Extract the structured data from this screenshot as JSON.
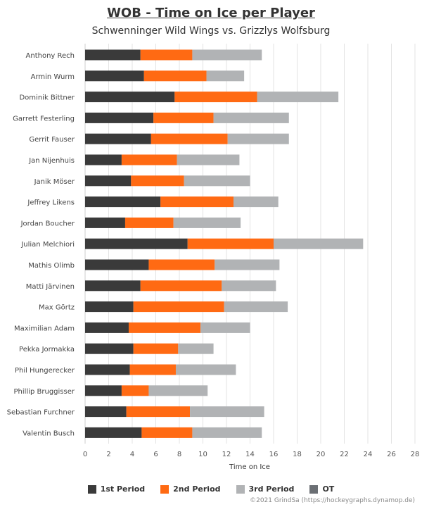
{
  "title": "WOB - Time on Ice per Player",
  "subtitle": "Schwenninger Wild Wings vs. Grizzlys Wolfsburg",
  "credit": "©2021 GrindSa (https://hockeygraphs.dynamop.de)",
  "colors": {
    "p1": "#3a3a3a",
    "p2": "#ff6a13",
    "p3": "#b1b3b5",
    "ot": "#6b6f74",
    "grid": "#e3e3e3",
    "axis": "#cccccc"
  },
  "chart_data": {
    "type": "bar",
    "orientation": "horizontal",
    "stacked": true,
    "xlabel": "Time on Ice",
    "xlim": [
      0,
      28
    ],
    "xticks": [
      0,
      2,
      4,
      6,
      8,
      10,
      12,
      14,
      16,
      18,
      20,
      22,
      24,
      26,
      28
    ],
    "grid": true,
    "legend_position": "bottom",
    "categories": [
      "Anthony Rech",
      "Armin Wurm",
      "Dominik Bittner",
      "Garrett Festerling",
      "Gerrit Fauser",
      "Jan Nijenhuis",
      "Janik Möser",
      "Jeffrey Likens",
      "Jordan Boucher",
      "Julian Melchiori",
      "Mathis Olimb",
      "Matti Järvinen",
      "Max Görtz",
      "Maximilian Adam",
      "Pekka Jormakka",
      "Phil Hungerecker",
      "Phillip Bruggisser",
      "Sebastian Furchner",
      "Valentin Busch"
    ],
    "series": [
      {
        "name": "1st Period",
        "color_key": "p1",
        "values": [
          4.7,
          5.0,
          7.6,
          5.8,
          5.6,
          3.1,
          3.9,
          6.4,
          3.4,
          8.7,
          5.4,
          4.7,
          4.1,
          3.7,
          4.1,
          3.8,
          3.1,
          3.5,
          4.8
        ]
      },
      {
        "name": "2nd Period",
        "color_key": "p2",
        "values": [
          4.4,
          5.3,
          7.0,
          5.1,
          6.5,
          4.7,
          4.5,
          6.2,
          4.1,
          7.3,
          5.6,
          6.9,
          7.7,
          6.1,
          3.8,
          3.9,
          2.3,
          5.4,
          4.3
        ]
      },
      {
        "name": "3rd Period",
        "color_key": "p3",
        "values": [
          5.9,
          3.2,
          6.9,
          6.4,
          5.2,
          5.3,
          5.6,
          3.8,
          5.7,
          7.6,
          5.5,
          4.6,
          5.4,
          4.2,
          3.0,
          5.1,
          5.0,
          6.3,
          5.9
        ]
      },
      {
        "name": "OT",
        "color_key": "ot",
        "values": [
          0,
          0,
          0,
          0,
          0,
          0,
          0,
          0,
          0,
          0,
          0,
          0,
          0,
          0,
          0,
          0,
          0,
          0,
          0
        ]
      }
    ]
  }
}
